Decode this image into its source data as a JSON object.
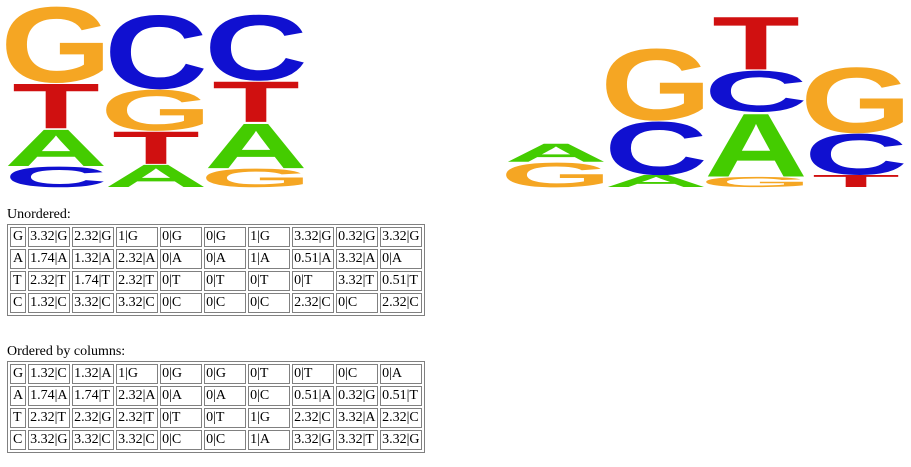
{
  "colors": {
    "A": "#44cc00",
    "C": "#1010d0",
    "G": "#f5a623",
    "T": "#d01010"
  },
  "logos": [
    {
      "columns": [
        [
          {
            "letter": "C",
            "h": 0.5
          },
          {
            "letter": "A",
            "h": 0.9
          },
          {
            "letter": "T",
            "h": 1.1
          },
          {
            "letter": "G",
            "h": 1.85
          }
        ],
        [
          {
            "letter": "A",
            "h": 0.55
          },
          {
            "letter": "T",
            "h": 0.8
          },
          {
            "letter": "G",
            "h": 1.0
          },
          {
            "letter": "C",
            "h": 1.8
          }
        ],
        [
          {
            "letter": "G",
            "h": 0.45
          },
          {
            "letter": "A",
            "h": 1.1
          },
          {
            "letter": "T",
            "h": 1.0
          },
          {
            "letter": "C",
            "h": 1.6
          }
        ]
      ]
    },
    {
      "columns": [
        [
          {
            "letter": "G",
            "h": 0.6
          },
          {
            "letter": "A",
            "h": 0.45
          }
        ],
        [
          {
            "letter": "A",
            "h": 0.3
          },
          {
            "letter": "C",
            "h": 1.3
          },
          {
            "letter": "G",
            "h": 1.75
          }
        ],
        [
          {
            "letter": "G",
            "h": 0.25
          },
          {
            "letter": "A",
            "h": 1.55
          },
          {
            "letter": "C",
            "h": 1.0
          },
          {
            "letter": "T",
            "h": 1.3
          }
        ],
        [
          {
            "letter": "T",
            "h": 0.3
          },
          {
            "letter": "C",
            "h": 1.0
          },
          {
            "letter": "G",
            "h": 1.6
          }
        ]
      ]
    }
  ],
  "unordered": {
    "title": "Unordered:",
    "rows": [
      {
        "label": "G",
        "cells": [
          "3.32|G",
          "2.32|G",
          "1|G",
          "0|G",
          "0|G",
          "1|G",
          "3.32|G",
          "0.32|G",
          "3.32|G"
        ]
      },
      {
        "label": "A",
        "cells": [
          "1.74|A",
          "1.32|A",
          "2.32|A",
          "0|A",
          "0|A",
          "1|A",
          "0.51|A",
          "3.32|A",
          "0|A"
        ]
      },
      {
        "label": "T",
        "cells": [
          "2.32|T",
          "1.74|T",
          "2.32|T",
          "0|T",
          "0|T",
          "0|T",
          "0|T",
          "3.32|T",
          "0.51|T"
        ]
      },
      {
        "label": "C",
        "cells": [
          "1.32|C",
          "3.32|C",
          "3.32|C",
          "0|C",
          "0|C",
          "0|C",
          "2.32|C",
          "0|C",
          "2.32|C"
        ]
      }
    ]
  },
  "ordered": {
    "title": "Ordered by columns:",
    "rows": [
      {
        "label": "G",
        "cells": [
          "1.32|C",
          "1.32|A",
          "1|G",
          "0|G",
          "0|G",
          "0|T",
          "0|T",
          "0|C",
          "0|A"
        ]
      },
      {
        "label": "A",
        "cells": [
          "1.74|A",
          "1.74|T",
          "2.32|A",
          "0|A",
          "0|A",
          "0|C",
          "0.51|A",
          "0.32|G",
          "0.51|T"
        ]
      },
      {
        "label": "T",
        "cells": [
          "2.32|T",
          "2.32|G",
          "2.32|T",
          "0|T",
          "0|T",
          "1|G",
          "2.32|C",
          "3.32|A",
          "2.32|C"
        ]
      },
      {
        "label": "C",
        "cells": [
          "3.32|G",
          "3.32|C",
          "3.32|C",
          "0|C",
          "0|C",
          "1|A",
          "3.32|G",
          "3.32|T",
          "3.32|G"
        ]
      }
    ]
  }
}
